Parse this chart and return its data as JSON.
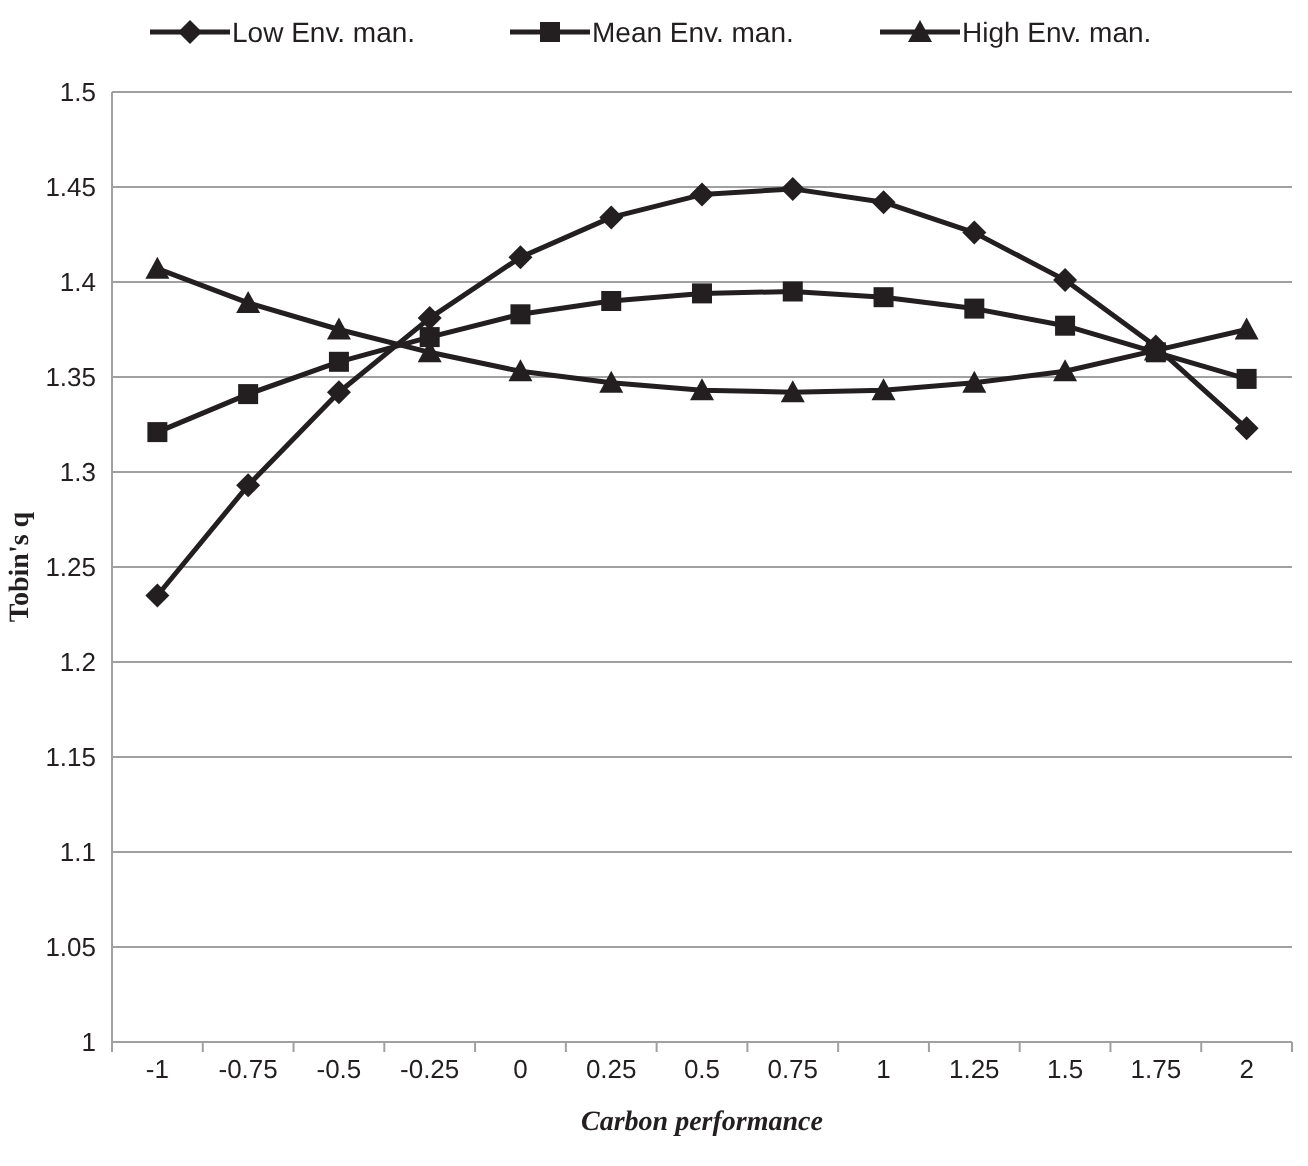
{
  "chart_data": {
    "type": "line",
    "xlabel": "Carbon performance",
    "ylabel": "Tobin's q",
    "categories": [
      "-1",
      "-0.75",
      "-0.5",
      "-0.25",
      "0",
      "0.25",
      "0.5",
      "0.75",
      "1",
      "1.25",
      "1.5",
      "1.75",
      "2"
    ],
    "series": [
      {
        "name": "Low Env. man.",
        "color": "#231f20",
        "marker": "diamond",
        "values": [
          1.235,
          1.293,
          1.342,
          1.381,
          1.413,
          1.434,
          1.446,
          1.449,
          1.442,
          1.426,
          1.401,
          1.366,
          1.323
        ]
      },
      {
        "name": "Mean Env. man.",
        "color": "#231f20",
        "marker": "square",
        "values": [
          1.321,
          1.341,
          1.358,
          1.371,
          1.383,
          1.39,
          1.394,
          1.395,
          1.392,
          1.386,
          1.377,
          1.363,
          1.349
        ]
      },
      {
        "name": "High Env. man.",
        "color": "#231f20",
        "marker": "triangle",
        "values": [
          1.407,
          1.389,
          1.375,
          1.363,
          1.353,
          1.347,
          1.343,
          1.342,
          1.343,
          1.347,
          1.353,
          1.364,
          1.375
        ]
      }
    ],
    "ylim": [
      1,
      1.5
    ],
    "yticks": [
      1,
      1.05,
      1.1,
      1.15,
      1.2,
      1.25,
      1.3,
      1.35,
      1.4,
      1.45,
      1.5
    ],
    "grid": "y",
    "legend": "top"
  }
}
